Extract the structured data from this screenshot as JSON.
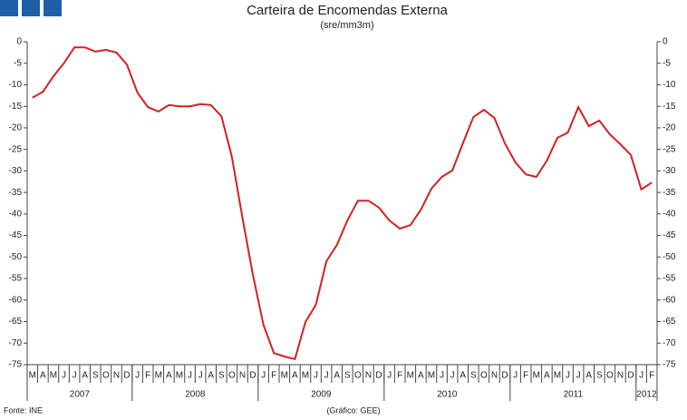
{
  "chart_data": {
    "type": "line",
    "title": "Carteira de Encomendas Externa",
    "subtitle": "(sre/mm3m)",
    "source": "Fonte: INE",
    "credit": "(Gráfico: GEE)",
    "categories": [
      "M",
      "A",
      "M",
      "J",
      "J",
      "A",
      "S",
      "O",
      "N",
      "D",
      "J",
      "F",
      "M",
      "A",
      "M",
      "J",
      "J",
      "A",
      "S",
      "O",
      "N",
      "D",
      "J",
      "F",
      "M",
      "A",
      "M",
      "J",
      "J",
      "A",
      "S",
      "O",
      "N",
      "D",
      "J",
      "F",
      "M",
      "A",
      "M",
      "J",
      "J",
      "A",
      "S",
      "O",
      "N",
      "D",
      "J",
      "F",
      "M",
      "A",
      "M",
      "J",
      "J",
      "A",
      "S",
      "O",
      "N",
      "D",
      "J",
      "F"
    ],
    "year_labels": [
      "2007",
      "2008",
      "2009",
      "2010",
      "2011",
      "2012"
    ],
    "series": [
      {
        "color": "#d42020",
        "values": [
          -13,
          -11.6,
          -8,
          -5,
          -1.3,
          -1.3,
          -2.3,
          -1.9,
          -2.5,
          -5.3,
          -11.8,
          -15.2,
          -16.2,
          -14.7,
          -15,
          -15,
          -14.5,
          -14.7,
          -17.3,
          -26.8,
          -40.9,
          -54.1,
          -65.7,
          -72.3,
          -73.1,
          -73.7,
          -65.1,
          -61.1,
          -51,
          -47.2,
          -41.5,
          -36.9,
          -36.9,
          -38.5,
          -41.5,
          -43.4,
          -42.6,
          -39,
          -34.1,
          -31.4,
          -29.9,
          -23.6,
          -17.5,
          -15.8,
          -17.7,
          -23.6,
          -28,
          -30.8,
          -31.4,
          -27.6,
          -22.3,
          -21.1,
          -15.2,
          -19.6,
          -18.3,
          -21.5,
          -23.8,
          -26.3,
          -34.3,
          -32.7
        ]
      }
    ],
    "ylim": [
      -75,
      0
    ],
    "yticks": [
      0,
      -5,
      -10,
      -15,
      -20,
      -25,
      -30,
      -35,
      -40,
      -45,
      -50,
      -55,
      -60,
      -65,
      -70,
      -75
    ]
  }
}
